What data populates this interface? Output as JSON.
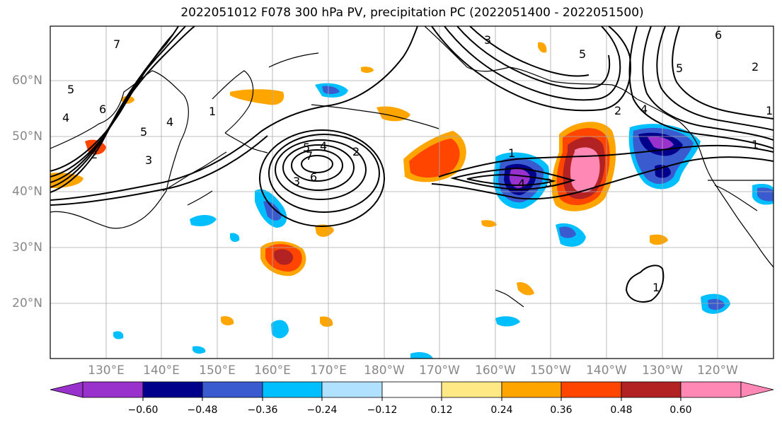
{
  "title": "2022051012 F078 300 hPa PV, precipitation PC (2022051400 - 2022051500)",
  "lat_labels": [
    "60°N",
    "50°N",
    "40°N",
    "30°N",
    "20°N"
  ],
  "lon_labels": [
    "130°E",
    "140°E",
    "150°E",
    "160°E",
    "170°E",
    "180°W",
    "170°W",
    "160°W",
    "150°W",
    "140°W",
    "130°W",
    "120°W"
  ],
  "colorbar": {
    "ticks": [
      "−0.60",
      "−0.48",
      "−0.36",
      "−0.24",
      "−0.12",
      "0.12",
      "0.24",
      "0.36",
      "0.48",
      "0.60"
    ],
    "colors": [
      "#9932cc",
      "#00008b",
      "#3a5bd0",
      "#00bfff",
      "#b0e2ff",
      "#ffffff",
      "#ffe985",
      "#ffa500",
      "#ff4500",
      "#b22222",
      "#ff88b4"
    ]
  },
  "contour_labels": [
    "5",
    "6",
    "7",
    "4",
    "5",
    "4",
    "3",
    "2",
    "1",
    "6",
    "5",
    "4",
    "3",
    "2",
    "1",
    "7",
    "6",
    "5",
    "4",
    "3",
    "2",
    "1",
    "5",
    "4",
    "3",
    "2",
    "1",
    "1"
  ]
}
